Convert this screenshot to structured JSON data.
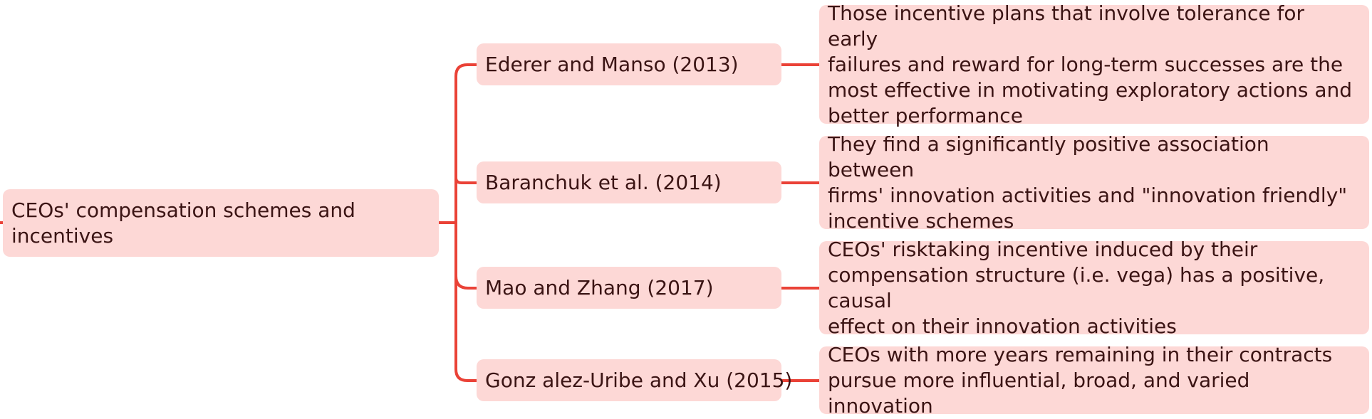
{
  "diagram": {
    "line_color": "#ea4237",
    "node_fill": "#fdd8d6",
    "text_color": "#3b1414",
    "root": {
      "lines": [
        "CEOs' compensation schemes and",
        "incentives"
      ]
    },
    "branches": [
      {
        "reference": "Ederer and Manso (2013)",
        "finding_lines": [
          "Those incentive plans that involve tolerance for early",
          "failures and reward for long-term successes are the",
          "most effective in motivating exploratory actions and",
          "better performance"
        ]
      },
      {
        "reference": "Baranchuk et al. (2014)",
        "finding_lines": [
          "They find a significantly positive association between",
          "firms' innovation activities and \"innovation friendly\"",
          "incentive schemes"
        ]
      },
      {
        "reference": "Mao and Zhang (2017)",
        "finding_lines": [
          "CEOs' risktaking incentive induced by their",
          "compensation structure (i.e. vega) has a positive, causal",
          "effect on their innovation activities"
        ]
      },
      {
        "reference": "Gonz alez-Uribe and Xu (2015)",
        "finding_lines": [
          "CEOs with more years remaining in their contracts",
          "pursue more influential, broad, and varied innovation"
        ]
      }
    ]
  }
}
